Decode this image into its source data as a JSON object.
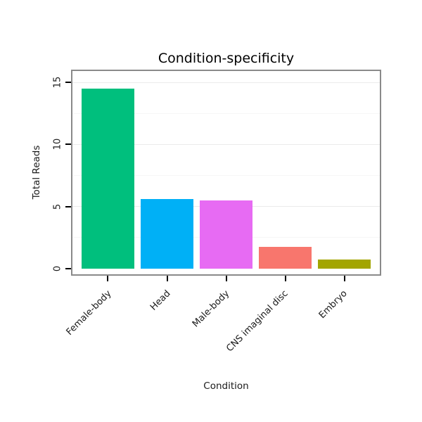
{
  "chart_data": {
    "type": "bar",
    "title": "Condition-specificity",
    "xlabel": "Condition",
    "ylabel": "Total Reads",
    "categories": [
      "Female-body",
      "Head",
      "Male-body",
      "CNS imaginal disc",
      "Embryo"
    ],
    "values": [
      14.5,
      5.6,
      5.5,
      1.75,
      0.75
    ],
    "bar_colors": [
      "#00BF7D",
      "#00B0F6",
      "#E76BF3",
      "#F8766D",
      "#A3A500"
    ],
    "ylim": [
      0,
      15
    ],
    "yticks": [
      0,
      5,
      10,
      15
    ],
    "yticks_minor": [
      2.5,
      7.5,
      12.5
    ],
    "grid": "horizontal major+minor",
    "legend": "none"
  },
  "colors": {
    "background": "#ffffff",
    "plot_border": "#8a8a8a",
    "grid_major": "#ebebeb",
    "grid_minor": "#f6f6f6",
    "tick": "#000000",
    "text": "#1a1a1a",
    "title": "#000000"
  }
}
